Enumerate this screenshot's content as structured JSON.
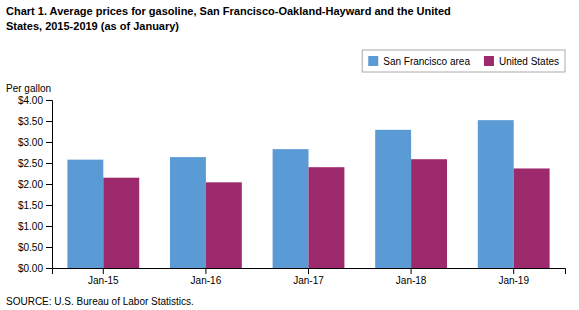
{
  "chart_data": {
    "type": "bar",
    "title": [
      "Chart 1. Average prices for gasoline, San Francisco-Oakland-Hayward and the United",
      "States, 2015-2019  (as of January)"
    ],
    "y_label": "Per gallon",
    "annotations": [
      "SOURCE: U.S. Bureau of Labor Statistics."
    ],
    "categories": [
      "Jan-15",
      "Jan-16",
      "Jan-17",
      "Jan-18",
      "Jan-19"
    ],
    "series": [
      {
        "name": "San Francisco area",
        "color": "#5B9BD5",
        "values": [
          2.58,
          2.64,
          2.83,
          3.29,
          3.52
        ]
      },
      {
        "name": "United States",
        "color": "#9E2A6E",
        "values": [
          2.15,
          2.04,
          2.4,
          2.59,
          2.37
        ]
      }
    ],
    "ylim": [
      0,
      4.0
    ],
    "yticks": [
      {
        "value": 0.0,
        "label": "$0.00"
      },
      {
        "value": 0.5,
        "label": "$0.50"
      },
      {
        "value": 1.0,
        "label": "$1.00"
      },
      {
        "value": 1.5,
        "label": "$1.50"
      },
      {
        "value": 2.0,
        "label": "$2.00"
      },
      {
        "value": 2.5,
        "label": "$2.50"
      },
      {
        "value": 3.0,
        "label": "$3.00"
      },
      {
        "value": 3.5,
        "label": "$3.50"
      },
      {
        "value": 4.0,
        "label": "$4.00"
      }
    ],
    "legend": "upper right",
    "grid": false
  }
}
